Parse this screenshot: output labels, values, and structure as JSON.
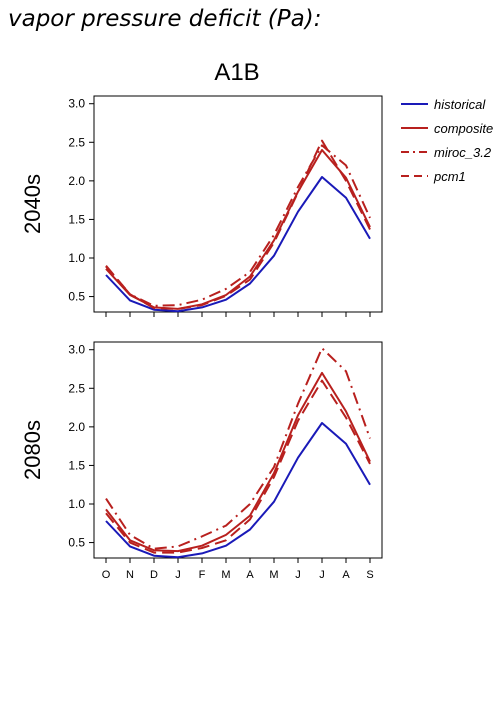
{
  "figure": {
    "title": "vapor pressure deficit (Pa):",
    "scenario": "A1B"
  },
  "colors": {
    "historical": "#1a1ab8",
    "composite": "#b8201e",
    "miroc_3.2": "#b8201e",
    "pcm1": "#b8201e"
  },
  "legend": {
    "placement": "right",
    "items": [
      {
        "name": "historical",
        "style": "solid",
        "color": "#1a1ab8"
      },
      {
        "name": "composite",
        "style": "solid",
        "color": "#b8201e"
      },
      {
        "name": "miroc_3.2",
        "style": "dashdot",
        "color": "#b8201e"
      },
      {
        "name": "pcm1",
        "style": "dashed",
        "color": "#b8201e"
      }
    ]
  },
  "chart_data": [
    {
      "type": "line",
      "panel_label": "2040s",
      "x": [
        "O",
        "N",
        "D",
        "J",
        "F",
        "M",
        "A",
        "M",
        "J",
        "J",
        "A",
        "S"
      ],
      "ylim": [
        0.3,
        3.1
      ],
      "yticks": [
        "0.5",
        "1.0",
        "1.5",
        "2.0",
        "2.5",
        "3.0"
      ],
      "series": [
        {
          "name": "historical",
          "style": "solid",
          "values": [
            0.78,
            0.45,
            0.33,
            0.31,
            0.36,
            0.46,
            0.67,
            1.03,
            1.6,
            2.05,
            1.78,
            1.25
          ]
        },
        {
          "name": "composite",
          "style": "solid",
          "values": [
            0.86,
            0.52,
            0.36,
            0.34,
            0.4,
            0.52,
            0.76,
            1.23,
            1.86,
            2.4,
            2.04,
            1.4
          ]
        },
        {
          "name": "miroc_3.2",
          "style": "dashdot",
          "values": [
            0.89,
            0.53,
            0.38,
            0.39,
            0.46,
            0.6,
            0.82,
            1.3,
            1.92,
            2.46,
            2.2,
            1.52
          ]
        },
        {
          "name": "pcm1",
          "style": "dashed",
          "values": [
            0.9,
            0.53,
            0.35,
            0.34,
            0.39,
            0.51,
            0.72,
            1.2,
            1.85,
            2.52,
            2.0,
            1.37
          ]
        }
      ]
    },
    {
      "type": "line",
      "panel_label": "2080s",
      "x": [
        "O",
        "N",
        "D",
        "J",
        "F",
        "M",
        "A",
        "M",
        "J",
        "J",
        "A",
        "S"
      ],
      "ylim": [
        0.3,
        3.1
      ],
      "yticks": [
        "0.5",
        "1.0",
        "1.5",
        "2.0",
        "2.5",
        "3.0"
      ],
      "series": [
        {
          "name": "historical",
          "style": "solid",
          "values": [
            0.78,
            0.45,
            0.33,
            0.31,
            0.36,
            0.46,
            0.67,
            1.03,
            1.6,
            2.05,
            1.78,
            1.25
          ]
        },
        {
          "name": "composite",
          "style": "solid",
          "values": [
            0.93,
            0.53,
            0.4,
            0.39,
            0.46,
            0.6,
            0.85,
            1.4,
            2.15,
            2.7,
            2.2,
            1.55
          ]
        },
        {
          "name": "miroc_3.2",
          "style": "dashdot",
          "values": [
            1.07,
            0.6,
            0.42,
            0.45,
            0.58,
            0.72,
            1.0,
            1.48,
            2.3,
            3.02,
            2.72,
            1.85
          ]
        },
        {
          "name": "pcm1",
          "style": "dashed",
          "values": [
            0.88,
            0.5,
            0.37,
            0.37,
            0.43,
            0.53,
            0.8,
            1.35,
            2.08,
            2.6,
            2.12,
            1.52
          ]
        }
      ]
    }
  ]
}
